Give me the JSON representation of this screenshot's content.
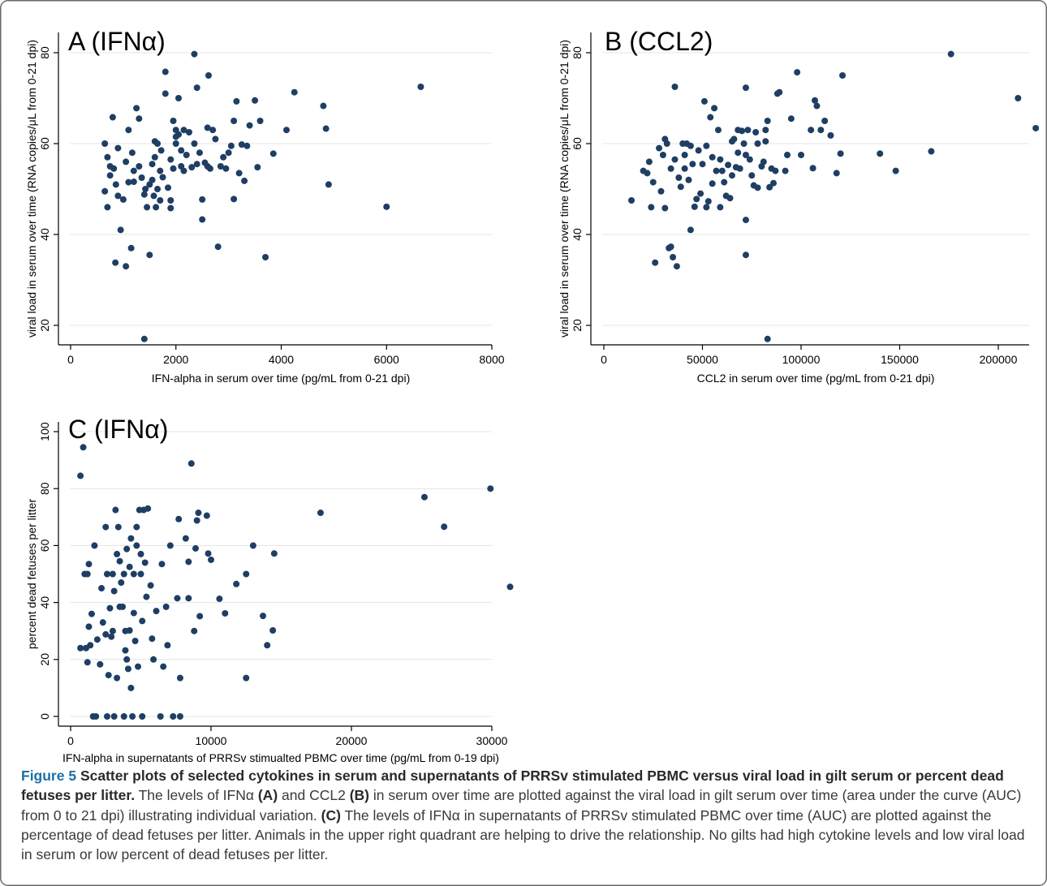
{
  "caption": {
    "figure_label": "Figure 5",
    "title": "Scatter plots of selected cytokines in serum and supernatants of PRRSv stimulated PBMC versus viral load in gilt serum or percent dead fetuses per litter.",
    "part1": " The levels of IFNα ",
    "ref_a": "(A)",
    "part2": " and CCL2 ",
    "ref_b": "(B)",
    "part3": " in serum over time are plotted against the viral load in gilt serum over time (area under the curve (AUC) from 0 to 21 dpi) illustrating individual variation. ",
    "ref_c": "(C)",
    "part4": " The levels of IFNα in supernatants of PRRSv stimulated PBMC over time (AUC) are plotted against the percentage of dead fetuses per litter. Animals in the upper right quadrant are helping to drive the relationship. No gilts had high cytokine levels and low viral load in serum or low percent of dead fetuses per litter."
  },
  "chart_data": [
    {
      "type": "scatter",
      "panel": "A",
      "title": "A (IFNα)",
      "xlabel": "IFN-alpha in serum over time (pg/mL from 0-21 dpi)",
      "ylabel": "viral load in serum over time (RNA copies/μL from 0-21 dpi)",
      "xlim": [
        0,
        8000
      ],
      "ylim": [
        17,
        80
      ],
      "xticks": [
        0,
        2000,
        4000,
        6000,
        8000
      ],
      "yticks": [
        20,
        40,
        60,
        80
      ],
      "grid": true,
      "marker_color": "#1f3e63",
      "points": [
        [
          650,
          49.5
        ],
        [
          650,
          60
        ],
        [
          700,
          57
        ],
        [
          700,
          46
        ],
        [
          750,
          55
        ],
        [
          750,
          53
        ],
        [
          800,
          65.8
        ],
        [
          820,
          54.5
        ],
        [
          850,
          33.8
        ],
        [
          860,
          51
        ],
        [
          900,
          48.5
        ],
        [
          900,
          59
        ],
        [
          950,
          41
        ],
        [
          1000,
          47.7
        ],
        [
          1050,
          56
        ],
        [
          1050,
          33
        ],
        [
          1100,
          63
        ],
        [
          1100,
          51.5
        ],
        [
          1150,
          37
        ],
        [
          1170,
          58
        ],
        [
          1200,
          51.6
        ],
        [
          1200,
          54
        ],
        [
          1250,
          67.8
        ],
        [
          1300,
          55
        ],
        [
          1300,
          65.5
        ],
        [
          1350,
          52.5
        ],
        [
          1400,
          48.8
        ],
        [
          1400,
          17
        ],
        [
          1420,
          50
        ],
        [
          1450,
          46
        ],
        [
          1500,
          51
        ],
        [
          1500,
          35.5
        ],
        [
          1550,
          55.5
        ],
        [
          1550,
          52
        ],
        [
          1580,
          48.5
        ],
        [
          1600,
          60.5
        ],
        [
          1600,
          57
        ],
        [
          1620,
          46
        ],
        [
          1650,
          60
        ],
        [
          1650,
          50
        ],
        [
          1700,
          54
        ],
        [
          1700,
          47.5
        ],
        [
          1720,
          58.5
        ],
        [
          1750,
          52.6
        ],
        [
          1800,
          71
        ],
        [
          1800,
          75.8
        ],
        [
          1850,
          50.3
        ],
        [
          1900,
          56.5
        ],
        [
          1900,
          47.5
        ],
        [
          1900,
          45.8
        ],
        [
          1950,
          54.5
        ],
        [
          1950,
          65
        ],
        [
          2000,
          60
        ],
        [
          2000,
          61.5
        ],
        [
          2000,
          63
        ],
        [
          2050,
          70
        ],
        [
          2050,
          62
        ],
        [
          2100,
          55
        ],
        [
          2100,
          58.5
        ],
        [
          2150,
          54
        ],
        [
          2150,
          63
        ],
        [
          2200,
          57.5
        ],
        [
          2250,
          62.5
        ],
        [
          2300,
          54.8
        ],
        [
          2350,
          60
        ],
        [
          2350,
          79.7
        ],
        [
          2400,
          72.3
        ],
        [
          2400,
          55.5
        ],
        [
          2450,
          58
        ],
        [
          2500,
          47.7
        ],
        [
          2500,
          43.3
        ],
        [
          2550,
          55.8
        ],
        [
          2600,
          63.5
        ],
        [
          2600,
          55
        ],
        [
          2620,
          75
        ],
        [
          2650,
          54.5
        ],
        [
          2700,
          63
        ],
        [
          2750,
          61
        ],
        [
          2800,
          37.3
        ],
        [
          2850,
          55
        ],
        [
          2900,
          57
        ],
        [
          2950,
          54.5
        ],
        [
          3000,
          58
        ],
        [
          3050,
          59.5
        ],
        [
          3100,
          47.8
        ],
        [
          3100,
          65
        ],
        [
          3150,
          69.3
        ],
        [
          3200,
          53.5
        ],
        [
          3250,
          59.8
        ],
        [
          3300,
          51.8
        ],
        [
          3350,
          59.5
        ],
        [
          3400,
          64
        ],
        [
          3500,
          69.5
        ],
        [
          3550,
          54.8
        ],
        [
          3600,
          65
        ],
        [
          3700,
          35
        ],
        [
          3850,
          57.8
        ],
        [
          4100,
          63
        ],
        [
          4250,
          71.3
        ],
        [
          4800,
          68.3
        ],
        [
          4850,
          63.3
        ],
        [
          4900,
          51
        ],
        [
          6000,
          46.1
        ],
        [
          6650,
          72.5
        ]
      ]
    },
    {
      "type": "scatter",
      "panel": "B",
      "title": "B (CCL2)",
      "xlabel": "CCL2 in serum over time (pg/mL from 0-21 dpi)",
      "ylabel": "viral load in serum over time (RNA copies/μL from 0-21 dpi)",
      "xlim": [
        0,
        220000
      ],
      "ylim": [
        17,
        80
      ],
      "xticks": [
        0,
        50000,
        100000,
        150000,
        200000
      ],
      "yticks": [
        20,
        40,
        60,
        80
      ],
      "grid": true,
      "marker_color": "#1f3e63",
      "points": [
        [
          14000,
          47.5
        ],
        [
          20000,
          54
        ],
        [
          22000,
          53.5
        ],
        [
          23000,
          56
        ],
        [
          24000,
          46
        ],
        [
          25000,
          51.5
        ],
        [
          26000,
          33.8
        ],
        [
          28000,
          59
        ],
        [
          29000,
          49.5
        ],
        [
          30000,
          57.5
        ],
        [
          31000,
          45.8
        ],
        [
          31000,
          61
        ],
        [
          32000,
          60
        ],
        [
          33000,
          37
        ],
        [
          34000,
          54.5
        ],
        [
          34000,
          37.3
        ],
        [
          35000,
          35
        ],
        [
          36000,
          56.5
        ],
        [
          36000,
          72.5
        ],
        [
          37000,
          33
        ],
        [
          38000,
          52.5
        ],
        [
          39000,
          50.5
        ],
        [
          40000,
          60
        ],
        [
          41000,
          57.5
        ],
        [
          41000,
          54.5
        ],
        [
          42000,
          60
        ],
        [
          43000,
          52
        ],
        [
          44000,
          41
        ],
        [
          44000,
          59.5
        ],
        [
          45000,
          55.5
        ],
        [
          46000,
          46.1
        ],
        [
          47000,
          47.8
        ],
        [
          48000,
          58.5
        ],
        [
          49000,
          49
        ],
        [
          50000,
          55.5
        ],
        [
          51000,
          69.3
        ],
        [
          52000,
          59.5
        ],
        [
          52000,
          46
        ],
        [
          53000,
          47.3
        ],
        [
          54000,
          65.8
        ],
        [
          55000,
          57
        ],
        [
          55000,
          51.2
        ],
        [
          56000,
          67.8
        ],
        [
          57000,
          54
        ],
        [
          58000,
          63
        ],
        [
          59000,
          56.5
        ],
        [
          59000,
          46
        ],
        [
          60000,
          54
        ],
        [
          61000,
          51.5
        ],
        [
          62000,
          48.5
        ],
        [
          63000,
          55.3
        ],
        [
          64000,
          48
        ],
        [
          65000,
          60.5
        ],
        [
          65000,
          53
        ],
        [
          66000,
          61
        ],
        [
          67000,
          54.8
        ],
        [
          68000,
          58
        ],
        [
          68000,
          63
        ],
        [
          69000,
          54.5
        ],
        [
          70000,
          62.8
        ],
        [
          71000,
          60
        ],
        [
          72000,
          57.5
        ],
        [
          72000,
          72.3
        ],
        [
          72000,
          43.2
        ],
        [
          73000,
          63
        ],
        [
          74000,
          56.5
        ],
        [
          75000,
          53
        ],
        [
          76000,
          50.8
        ],
        [
          77000,
          62.5
        ],
        [
          78000,
          60
        ],
        [
          78000,
          50.3
        ],
        [
          80000,
          55
        ],
        [
          81000,
          56
        ],
        [
          82000,
          60.5
        ],
        [
          82000,
          63
        ],
        [
          83000,
          65
        ],
        [
          84000,
          50.4
        ],
        [
          85000,
          54.5
        ],
        [
          86000,
          51.3
        ],
        [
          87000,
          54
        ],
        [
          88000,
          71
        ],
        [
          89000,
          71.3
        ],
        [
          72000,
          35.5
        ],
        [
          83000,
          17
        ],
        [
          92000,
          54
        ],
        [
          93000,
          57.5
        ],
        [
          95000,
          65.5
        ],
        [
          98000,
          75.7
        ],
        [
          100000,
          57.5
        ],
        [
          105000,
          63
        ],
        [
          106000,
          54.6
        ],
        [
          107000,
          69.5
        ],
        [
          108000,
          68.3
        ],
        [
          110000,
          63
        ],
        [
          112000,
          65
        ],
        [
          115000,
          61.8
        ],
        [
          118000,
          53.5
        ],
        [
          120000,
          57.8
        ],
        [
          121000,
          75
        ],
        [
          140000,
          57.8
        ],
        [
          148000,
          54
        ],
        [
          166000,
          58.3
        ],
        [
          176000,
          79.7
        ],
        [
          210000,
          70
        ],
        [
          219000,
          63.4
        ]
      ]
    },
    {
      "type": "scatter",
      "panel": "C",
      "title": "C (IFNα)",
      "xlabel": "IFN-alpha in supernatants of PRRSv stimualted PBMC over time (pg/mL from 0-19 dpi)",
      "ylabel": "percent dead fetuses per litter",
      "xlim": [
        0,
        31500
      ],
      "ylim": [
        0,
        100
      ],
      "xticks": [
        0,
        10000,
        20000,
        30000
      ],
      "yticks": [
        0,
        20,
        40,
        60,
        80,
        100
      ],
      "grid": true,
      "marker_color": "#1f3e63",
      "points": [
        [
          700,
          84.5
        ],
        [
          700,
          24
        ],
        [
          900,
          94.5
        ],
        [
          1000,
          50
        ],
        [
          1100,
          24
        ],
        [
          1200,
          19
        ],
        [
          1200,
          50
        ],
        [
          1300,
          53.5
        ],
        [
          1300,
          31.5
        ],
        [
          1400,
          25
        ],
        [
          1500,
          36
        ],
        [
          1600,
          0
        ],
        [
          1700,
          60
        ],
        [
          1800,
          0
        ],
        [
          1900,
          27
        ],
        [
          2100,
          18.3
        ],
        [
          2200,
          45
        ],
        [
          2300,
          33
        ],
        [
          2500,
          66.5
        ],
        [
          2500,
          28.8
        ],
        [
          2600,
          50
        ],
        [
          2600,
          0
        ],
        [
          2700,
          14.5
        ],
        [
          2800,
          38
        ],
        [
          2900,
          28
        ],
        [
          3000,
          30
        ],
        [
          3000,
          50
        ],
        [
          3100,
          44
        ],
        [
          3100,
          0
        ],
        [
          3200,
          72.5
        ],
        [
          3300,
          57
        ],
        [
          3300,
          13.5
        ],
        [
          3400,
          66.5
        ],
        [
          3500,
          38.5
        ],
        [
          3500,
          54.5
        ],
        [
          3600,
          47
        ],
        [
          3700,
          38.5
        ],
        [
          3800,
          50
        ],
        [
          3800,
          0
        ],
        [
          3900,
          30
        ],
        [
          3900,
          23.2
        ],
        [
          4000,
          58.8
        ],
        [
          4000,
          20
        ],
        [
          4100,
          16.7
        ],
        [
          4200,
          52.5
        ],
        [
          4200,
          30.2
        ],
        [
          4300,
          62.5
        ],
        [
          4300,
          10
        ],
        [
          4400,
          0
        ],
        [
          4500,
          50
        ],
        [
          4500,
          36.3
        ],
        [
          4600,
          26.5
        ],
        [
          4700,
          60
        ],
        [
          4700,
          66.5
        ],
        [
          4800,
          17.5
        ],
        [
          4900,
          72.5
        ],
        [
          5000,
          57
        ],
        [
          5000,
          50
        ],
        [
          5100,
          33.5
        ],
        [
          5100,
          0
        ],
        [
          5200,
          72.5
        ],
        [
          5300,
          54
        ],
        [
          5400,
          42
        ],
        [
          5500,
          73
        ],
        [
          5700,
          46
        ],
        [
          5800,
          27.3
        ],
        [
          5900,
          20
        ],
        [
          6100,
          37
        ],
        [
          6400,
          0
        ],
        [
          6500,
          53.5
        ],
        [
          6600,
          17.5
        ],
        [
          6800,
          38.5
        ],
        [
          6900,
          25
        ],
        [
          7100,
          60
        ],
        [
          7300,
          0
        ],
        [
          7600,
          41.5
        ],
        [
          7700,
          69.3
        ],
        [
          7800,
          13.5
        ],
        [
          7800,
          0
        ],
        [
          8200,
          62.5
        ],
        [
          8400,
          41.5
        ],
        [
          8400,
          54.3
        ],
        [
          8600,
          88.8
        ],
        [
          8800,
          30
        ],
        [
          8900,
          59
        ],
        [
          9000,
          68.8
        ],
        [
          9100,
          71.5
        ],
        [
          9200,
          35.2
        ],
        [
          9700,
          70.5
        ],
        [
          9800,
          57.2
        ],
        [
          10000,
          55
        ],
        [
          10600,
          41.3
        ],
        [
          11000,
          36.2
        ],
        [
          11800,
          46.5
        ],
        [
          12500,
          50
        ],
        [
          12500,
          13.5
        ],
        [
          13000,
          60
        ],
        [
          13700,
          35.3
        ],
        [
          14000,
          25
        ],
        [
          14400,
          30.2
        ],
        [
          14500,
          57.2
        ],
        [
          17800,
          71.5
        ],
        [
          25200,
          77
        ],
        [
          26600,
          66.6
        ],
        [
          29900,
          80
        ],
        [
          31300,
          45.5
        ]
      ]
    }
  ]
}
